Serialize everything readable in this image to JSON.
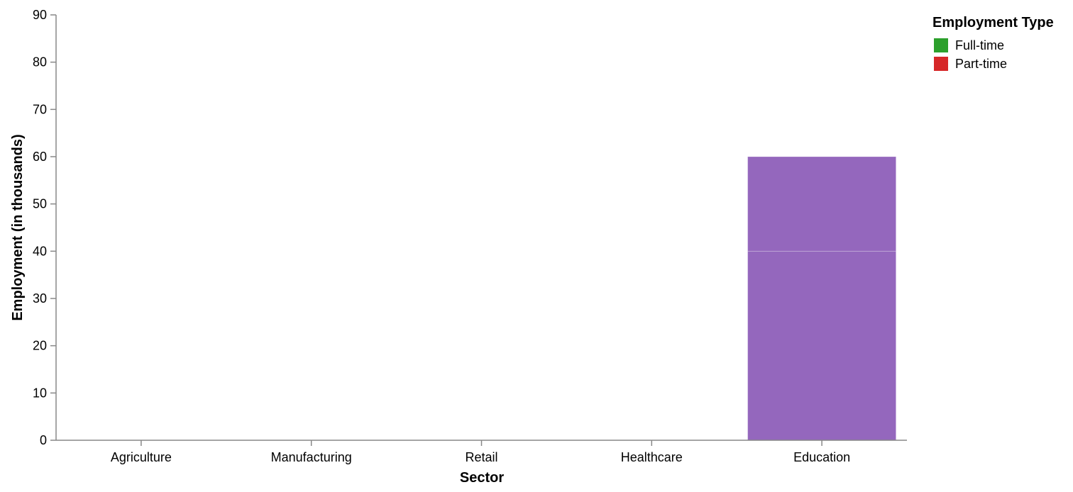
{
  "chart_data": {
    "type": "bar",
    "stacked": true,
    "xlabel": "Sector",
    "ylabel": "Employment (in thousands)",
    "categories": [
      "Agriculture",
      "Manufacturing",
      "Retail",
      "Healthcare",
      "Education"
    ],
    "ylim": [
      0,
      90
    ],
    "yticks": [
      0,
      10,
      20,
      30,
      40,
      50,
      60,
      70,
      80,
      90
    ],
    "grid": false,
    "legend": {
      "title": "Employment Type",
      "placement": "top-right",
      "entries": [
        {
          "label": "Full-time",
          "color": "#2ca02c"
        },
        {
          "label": "Part-time",
          "color": "#d62728"
        }
      ]
    },
    "bar_color": "#9467bd",
    "segments": [
      {
        "category": "Education",
        "start": 0,
        "end": 40
      },
      {
        "category": "Education",
        "start": 40,
        "end": 60
      }
    ]
  }
}
